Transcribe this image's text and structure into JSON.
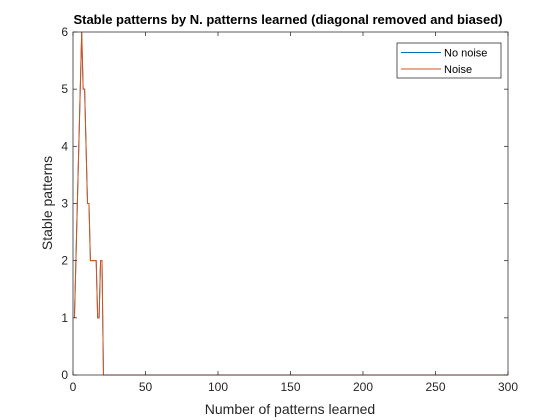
{
  "chart_data": {
    "type": "line",
    "title": "Stable patterns by N. patterns learned (diagonal removed and biased)",
    "xlabel": "Number of patterns learned",
    "ylabel": "Stable patterns",
    "xlim": [
      0,
      300
    ],
    "ylim": [
      0,
      6
    ],
    "xticks": [
      0,
      50,
      100,
      150,
      200,
      250,
      300
    ],
    "yticks": [
      0,
      1,
      2,
      3,
      4,
      5,
      6
    ],
    "grid": false,
    "legend_position": "top-right",
    "series": [
      {
        "name": "No noise",
        "color": "#0072BD",
        "x": [
          1,
          2,
          3,
          4,
          5,
          6,
          7,
          8,
          9,
          10,
          11,
          12,
          13,
          14,
          15,
          16,
          17,
          18,
          19,
          20,
          21,
          22,
          23,
          24,
          25,
          26,
          27,
          28,
          29,
          30,
          300
        ],
        "y": [
          1,
          2,
          3,
          4,
          5,
          6,
          5,
          5,
          4,
          3,
          3,
          2,
          2,
          2,
          2,
          2,
          1,
          1,
          2,
          2,
          0,
          0,
          0,
          0,
          0,
          0,
          0,
          0,
          0,
          0,
          0
        ]
      },
      {
        "name": "Noise",
        "color": "#D95319",
        "x": [
          1,
          2,
          3,
          4,
          5,
          6,
          7,
          8,
          9,
          10,
          11,
          12,
          13,
          14,
          15,
          16,
          17,
          18,
          19,
          20,
          21,
          22,
          23,
          24,
          25,
          26,
          27,
          28,
          29,
          30,
          300
        ],
        "y": [
          1,
          2,
          3,
          4,
          5,
          6,
          5,
          5,
          4,
          3,
          3,
          2,
          2,
          2,
          2,
          2,
          1,
          1,
          2,
          2,
          0,
          0,
          0,
          0,
          0,
          0,
          0,
          0,
          0,
          0,
          0
        ]
      }
    ]
  }
}
